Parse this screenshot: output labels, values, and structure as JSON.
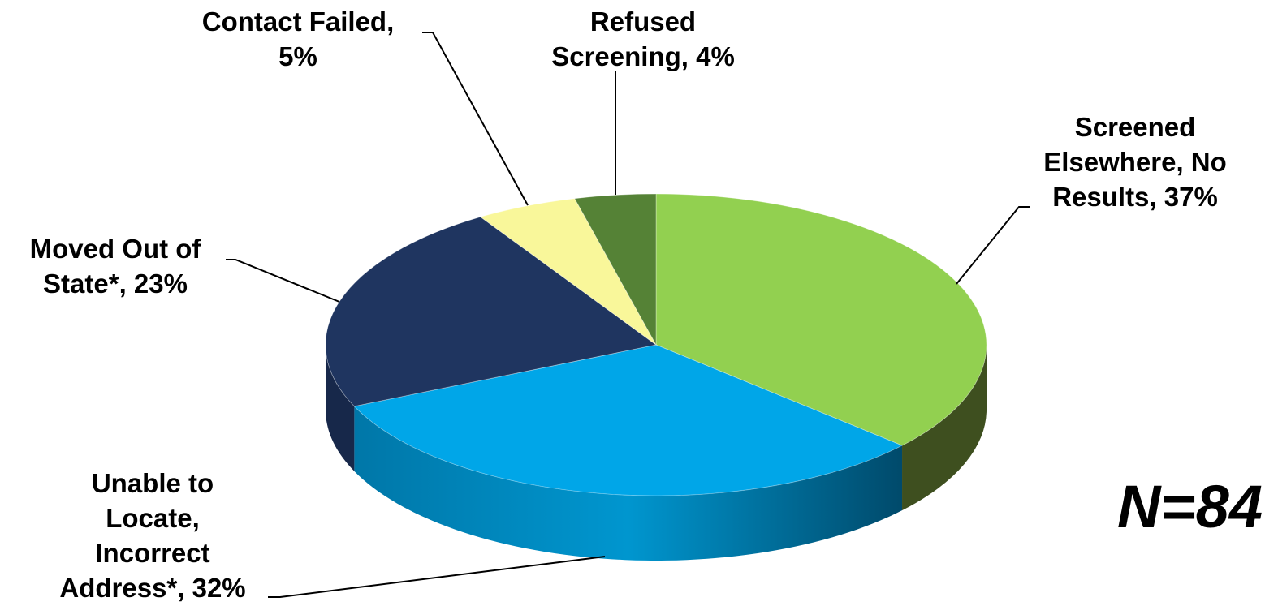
{
  "chart_data": {
    "type": "pie",
    "title": "",
    "slices": [
      {
        "label": [
          "Screened",
          "Elsewhere, No",
          "Results, 37%"
        ],
        "value": 37,
        "color": "#92d050",
        "side_color": "#3e4f1f"
      },
      {
        "label": [
          "Unable to",
          "Locate,",
          "Incorrect",
          "Address*, 32%"
        ],
        "value": 32,
        "color": "#00a6e8",
        "side_color": "#0086bb"
      },
      {
        "label": [
          "Moved Out of",
          "State*, 23%"
        ],
        "value": 23,
        "color": "#1f3560",
        "side_color": "#17284a"
      },
      {
        "label": [
          "Contact Failed,",
          "5%"
        ],
        "value": 5,
        "color": "#f9f79a",
        "side_color": "#c9c77a"
      },
      {
        "label": [
          "Refused",
          "Screening, 4%"
        ],
        "value": 4,
        "color": "#558236",
        "side_color": "#3a5a25"
      }
    ],
    "annotation": "N=84"
  }
}
